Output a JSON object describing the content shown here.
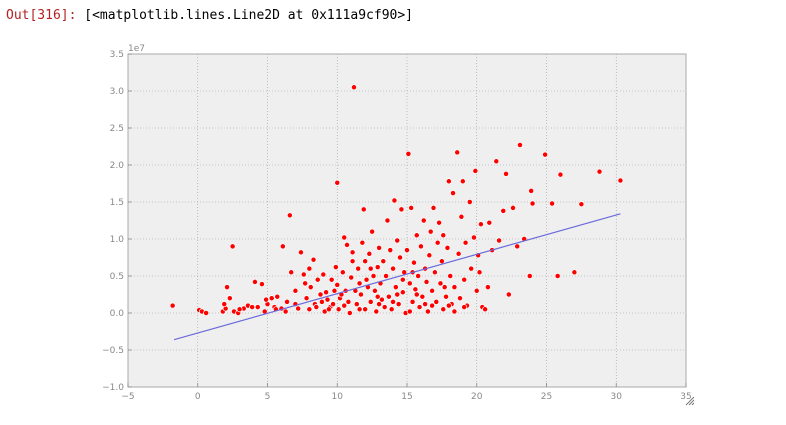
{
  "cell": {
    "prompt": "Out[316]:",
    "output_text": "[<matplotlib.lines.Line2D at 0x111a9cf90>]"
  },
  "chart_data": {
    "type": "scatter",
    "title": "",
    "xlabel": "",
    "ylabel": "",
    "xlim": [
      -5,
      35
    ],
    "ylim": [
      -1.0,
      3.5
    ],
    "y_exponent_label": "1e7",
    "x_ticks": [
      -5,
      0,
      5,
      10,
      15,
      20,
      25,
      30,
      35
    ],
    "x_tick_labels": [
      "−5",
      "0",
      "5",
      "10",
      "15",
      "20",
      "25",
      "30",
      "35"
    ],
    "y_ticks": [
      -1.0,
      -0.5,
      0.0,
      0.5,
      1.0,
      1.5,
      2.0,
      2.5,
      3.0,
      3.5
    ],
    "y_tick_labels": [
      "−1.0",
      "−0.5",
      "0.0",
      "0.5",
      "1.0",
      "1.5",
      "2.0",
      "2.5",
      "3.0",
      "3.5"
    ],
    "grid": true,
    "colors": {
      "points": "#ff0000",
      "line": "#6b6bdc",
      "axes_bg": "#efefef"
    },
    "fit_line": {
      "x": [
        -1.7,
        30.3
      ],
      "y": [
        -0.36,
        1.34
      ]
    },
    "points": [
      [
        -1.8,
        0.1
      ],
      [
        0.1,
        0.04
      ],
      [
        0.3,
        0.02
      ],
      [
        0.6,
        0.0
      ],
      [
        1.8,
        0.02
      ],
      [
        2.0,
        0.06
      ],
      [
        2.1,
        0.35
      ],
      [
        2.3,
        0.2
      ],
      [
        2.5,
        0.9
      ],
      [
        2.6,
        0.02
      ],
      [
        2.9,
        0.0
      ],
      [
        3.3,
        0.06
      ],
      [
        3.6,
        0.1
      ],
      [
        3.9,
        0.08
      ],
      [
        4.1,
        0.42
      ],
      [
        4.3,
        0.08
      ],
      [
        4.6,
        0.39
      ],
      [
        4.8,
        0.02
      ],
      [
        5.0,
        0.12
      ],
      [
        5.3,
        0.2
      ],
      [
        5.5,
        0.08
      ],
      [
        5.7,
        0.22
      ],
      [
        6.0,
        0.06
      ],
      [
        6.1,
        0.9
      ],
      [
        6.4,
        0.15
      ],
      [
        6.6,
        1.32
      ],
      [
        6.7,
        0.55
      ],
      [
        7.0,
        0.3
      ],
      [
        7.2,
        0.06
      ],
      [
        7.4,
        0.82
      ],
      [
        7.6,
        0.52
      ],
      [
        7.8,
        0.2
      ],
      [
        8.0,
        0.05
      ],
      [
        8.0,
        0.6
      ],
      [
        8.1,
        0.35
      ],
      [
        8.3,
        0.72
      ],
      [
        8.4,
        0.12
      ],
      [
        8.6,
        0.45
      ],
      [
        8.8,
        0.25
      ],
      [
        9.0,
        0.52
      ],
      [
        9.1,
        0.02
      ],
      [
        9.3,
        0.18
      ],
      [
        9.5,
        0.08
      ],
      [
        9.6,
        0.45
      ],
      [
        9.8,
        0.3
      ],
      [
        9.9,
        0.62
      ],
      [
        10.0,
        0.38
      ],
      [
        10.1,
        0.05
      ],
      [
        10.2,
        0.2
      ],
      [
        10.4,
        0.55
      ],
      [
        10.5,
        0.1
      ],
      [
        10.5,
        1.02
      ],
      [
        10.6,
        0.3
      ],
      [
        10.7,
        0.92
      ],
      [
        10.0,
        1.76
      ],
      [
        10.9,
        0.0
      ],
      [
        11.0,
        0.48
      ],
      [
        11.1,
        0.82
      ],
      [
        11.2,
        3.05
      ],
      [
        11.3,
        0.3
      ],
      [
        11.4,
        0.12
      ],
      [
        11.5,
        0.6
      ],
      [
        11.6,
        0.4
      ],
      [
        11.7,
        0.25
      ],
      [
        11.8,
        0.95
      ],
      [
        11.9,
        1.4
      ],
      [
        12.0,
        0.05
      ],
      [
        12.0,
        0.7
      ],
      [
        12.2,
        0.35
      ],
      [
        12.3,
        0.8
      ],
      [
        12.4,
        0.15
      ],
      [
        12.5,
        1.1
      ],
      [
        12.6,
        0.5
      ],
      [
        12.7,
        0.3
      ],
      [
        12.8,
        0.02
      ],
      [
        12.9,
        0.62
      ],
      [
        13.0,
        0.88
      ],
      [
        13.1,
        0.4
      ],
      [
        13.2,
        0.18
      ],
      [
        13.3,
        0.7
      ],
      [
        13.5,
        0.5
      ],
      [
        13.6,
        1.25
      ],
      [
        13.7,
        0.22
      ],
      [
        13.8,
        0.85
      ],
      [
        13.9,
        0.05
      ],
      [
        14.0,
        0.6
      ],
      [
        14.1,
        1.52
      ],
      [
        14.2,
        0.35
      ],
      [
        14.3,
        0.98
      ],
      [
        14.4,
        0.12
      ],
      [
        14.5,
        0.75
      ],
      [
        14.6,
        1.4
      ],
      [
        14.7,
        0.28
      ],
      [
        14.8,
        0.55
      ],
      [
        14.9,
        0.0
      ],
      [
        15.0,
        0.85
      ],
      [
        15.1,
        2.15
      ],
      [
        15.2,
        0.4
      ],
      [
        15.3,
        1.42
      ],
      [
        15.4,
        0.15
      ],
      [
        15.5,
        0.68
      ],
      [
        15.6,
        0.32
      ],
      [
        15.7,
        1.05
      ],
      [
        15.8,
        0.5
      ],
      [
        15.9,
        0.08
      ],
      [
        16.0,
        0.9
      ],
      [
        16.1,
        0.22
      ],
      [
        16.2,
        1.25
      ],
      [
        16.3,
        0.6
      ],
      [
        16.4,
        0.42
      ],
      [
        16.5,
        0.02
      ],
      [
        16.6,
        0.78
      ],
      [
        16.7,
        1.1
      ],
      [
        16.8,
        0.3
      ],
      [
        16.9,
        1.42
      ],
      [
        17.0,
        0.55
      ],
      [
        17.1,
        0.15
      ],
      [
        17.2,
        0.95
      ],
      [
        17.3,
        1.22
      ],
      [
        17.4,
        0.4
      ],
      [
        17.5,
        0.7
      ],
      [
        17.6,
        1.05
      ],
      [
        17.8,
        0.22
      ],
      [
        17.9,
        0.88
      ],
      [
        18.0,
        1.78
      ],
      [
        18.1,
        0.5
      ],
      [
        18.2,
        0.12
      ],
      [
        18.3,
        1.62
      ],
      [
        18.4,
        0.35
      ],
      [
        18.6,
        2.17
      ],
      [
        18.7,
        0.8
      ],
      [
        18.8,
        0.2
      ],
      [
        18.9,
        1.3
      ],
      [
        19.0,
        1.78
      ],
      [
        19.1,
        0.45
      ],
      [
        19.2,
        0.95
      ],
      [
        19.3,
        0.1
      ],
      [
        19.5,
        1.5
      ],
      [
        19.6,
        0.6
      ],
      [
        19.8,
        1.02
      ],
      [
        19.9,
        1.92
      ],
      [
        20.0,
        0.3
      ],
      [
        20.1,
        0.78
      ],
      [
        20.2,
        0.55
      ],
      [
        20.3,
        1.2
      ],
      [
        20.4,
        0.08
      ],
      [
        20.6,
        0.05
      ],
      [
        20.9,
        1.22
      ],
      [
        21.1,
        0.85
      ],
      [
        21.4,
        2.05
      ],
      [
        21.6,
        0.98
      ],
      [
        21.9,
        1.38
      ],
      [
        22.1,
        1.88
      ],
      [
        22.3,
        0.25
      ],
      [
        22.6,
        1.42
      ],
      [
        22.9,
        0.9
      ],
      [
        23.1,
        2.27
      ],
      [
        23.4,
        1.0
      ],
      [
        23.8,
        0.5
      ],
      [
        23.9,
        1.65
      ],
      [
        24.0,
        1.48
      ],
      [
        24.9,
        2.14
      ],
      [
        25.4,
        1.48
      ],
      [
        25.8,
        0.5
      ],
      [
        26.0,
        1.87
      ],
      [
        27.0,
        0.55
      ],
      [
        27.5,
        1.47
      ],
      [
        28.8,
        1.91
      ],
      [
        30.3,
        1.79
      ],
      [
        8.5,
        0.08
      ],
      [
        9.2,
        0.28
      ],
      [
        10.8,
        0.15
      ],
      [
        11.6,
        0.05
      ],
      [
        12.1,
        0.45
      ],
      [
        13.4,
        0.08
      ],
      [
        14.3,
        0.25
      ],
      [
        15.2,
        0.02
      ],
      [
        16.3,
        0.12
      ],
      [
        17.6,
        0.05
      ],
      [
        18.4,
        0.02
      ],
      [
        19.1,
        0.08
      ],
      [
        20.8,
        0.35
      ],
      [
        6.3,
        0.02
      ],
      [
        7.0,
        0.12
      ],
      [
        5.6,
        0.05
      ],
      [
        4.9,
        0.18
      ],
      [
        3.0,
        0.05
      ],
      [
        1.9,
        0.12
      ],
      [
        9.7,
        0.12
      ],
      [
        10.3,
        0.25
      ],
      [
        12.4,
        0.6
      ],
      [
        13.0,
        0.12
      ],
      [
        14.7,
        0.45
      ],
      [
        15.7,
        0.25
      ],
      [
        16.8,
        0.1
      ],
      [
        17.7,
        0.35
      ],
      [
        18.0,
        0.1
      ],
      [
        11.1,
        0.7
      ],
      [
        8.9,
        0.15
      ],
      [
        7.7,
        0.4
      ],
      [
        9.4,
        0.05
      ],
      [
        14.0,
        0.15
      ],
      [
        15.4,
        0.55
      ],
      [
        12.9,
        0.22
      ]
    ]
  }
}
